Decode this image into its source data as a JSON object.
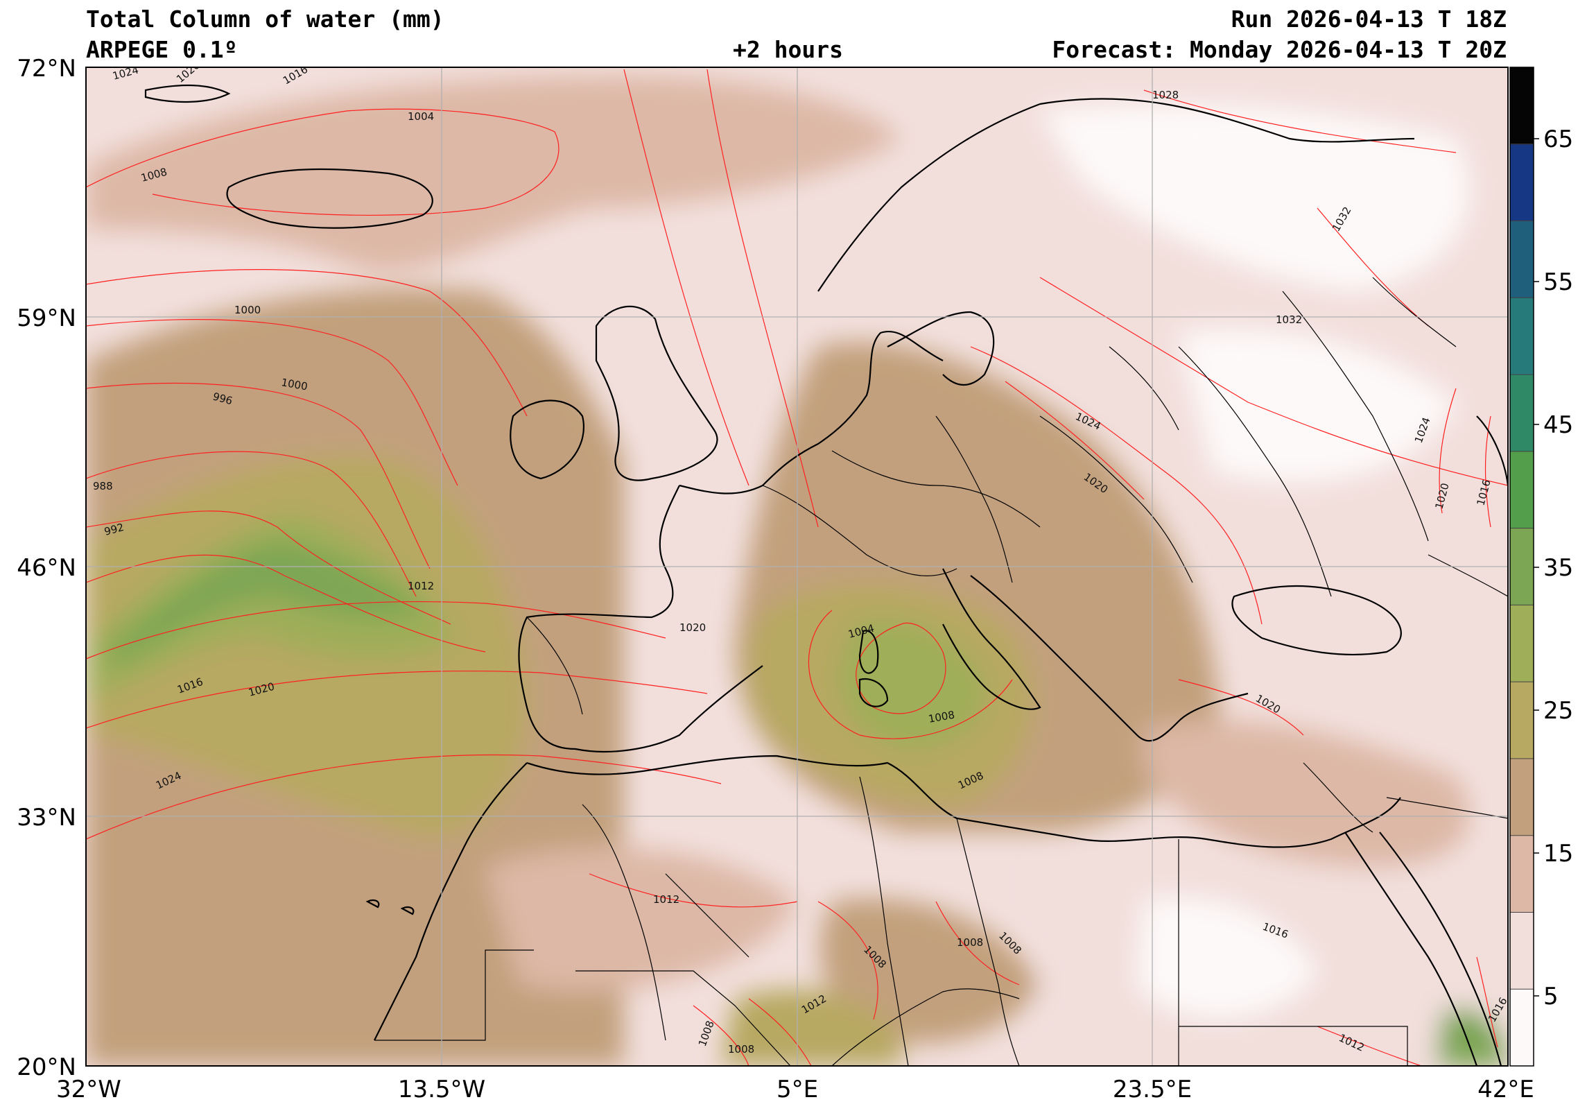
{
  "header": {
    "title": "Total Column of water (mm)",
    "model": "ARPEGE 0.1º",
    "run": "Run 2026-04-13 T 18Z",
    "lead": "+2 hours",
    "forecast": "Forecast: Monday 2026-04-13 T 20Z"
  },
  "axes": {
    "lat_labels": [
      "72°N",
      "59°N",
      "46°N",
      "33°N",
      "20°N"
    ],
    "lon_labels": [
      "32°W",
      "13.5°W",
      "5°E",
      "23.5°E",
      "42°E"
    ]
  },
  "colorbar": {
    "tick_labels": [
      "65",
      "55",
      "45",
      "35",
      "25",
      "15",
      "5"
    ],
    "colors": [
      "#fdf9f9",
      "#f2dfdc",
      "#ddb8a6",
      "#c2a07d",
      "#b7a862",
      "#9fae58",
      "#7da654",
      "#539e4a",
      "#2f8866",
      "#277a7a",
      "#205f7b",
      "#163784",
      "#050505"
    ]
  },
  "isobars": {
    "color": "#ff2020",
    "labels": [
      "1024",
      "1020",
      "1016",
      "1004",
      "1008",
      "1000",
      "1000",
      "996",
      "988",
      "992",
      "1012",
      "1016",
      "1020",
      "1024",
      "1020",
      "1004",
      "1008",
      "1008",
      "1028",
      "1032",
      "1032",
      "1024",
      "1020",
      "1024",
      "1020",
      "1016",
      "1020",
      "1012",
      "1008",
      "1008",
      "1008",
      "1012",
      "1008",
      "1008",
      "1016",
      "1012",
      "1016"
    ]
  }
}
